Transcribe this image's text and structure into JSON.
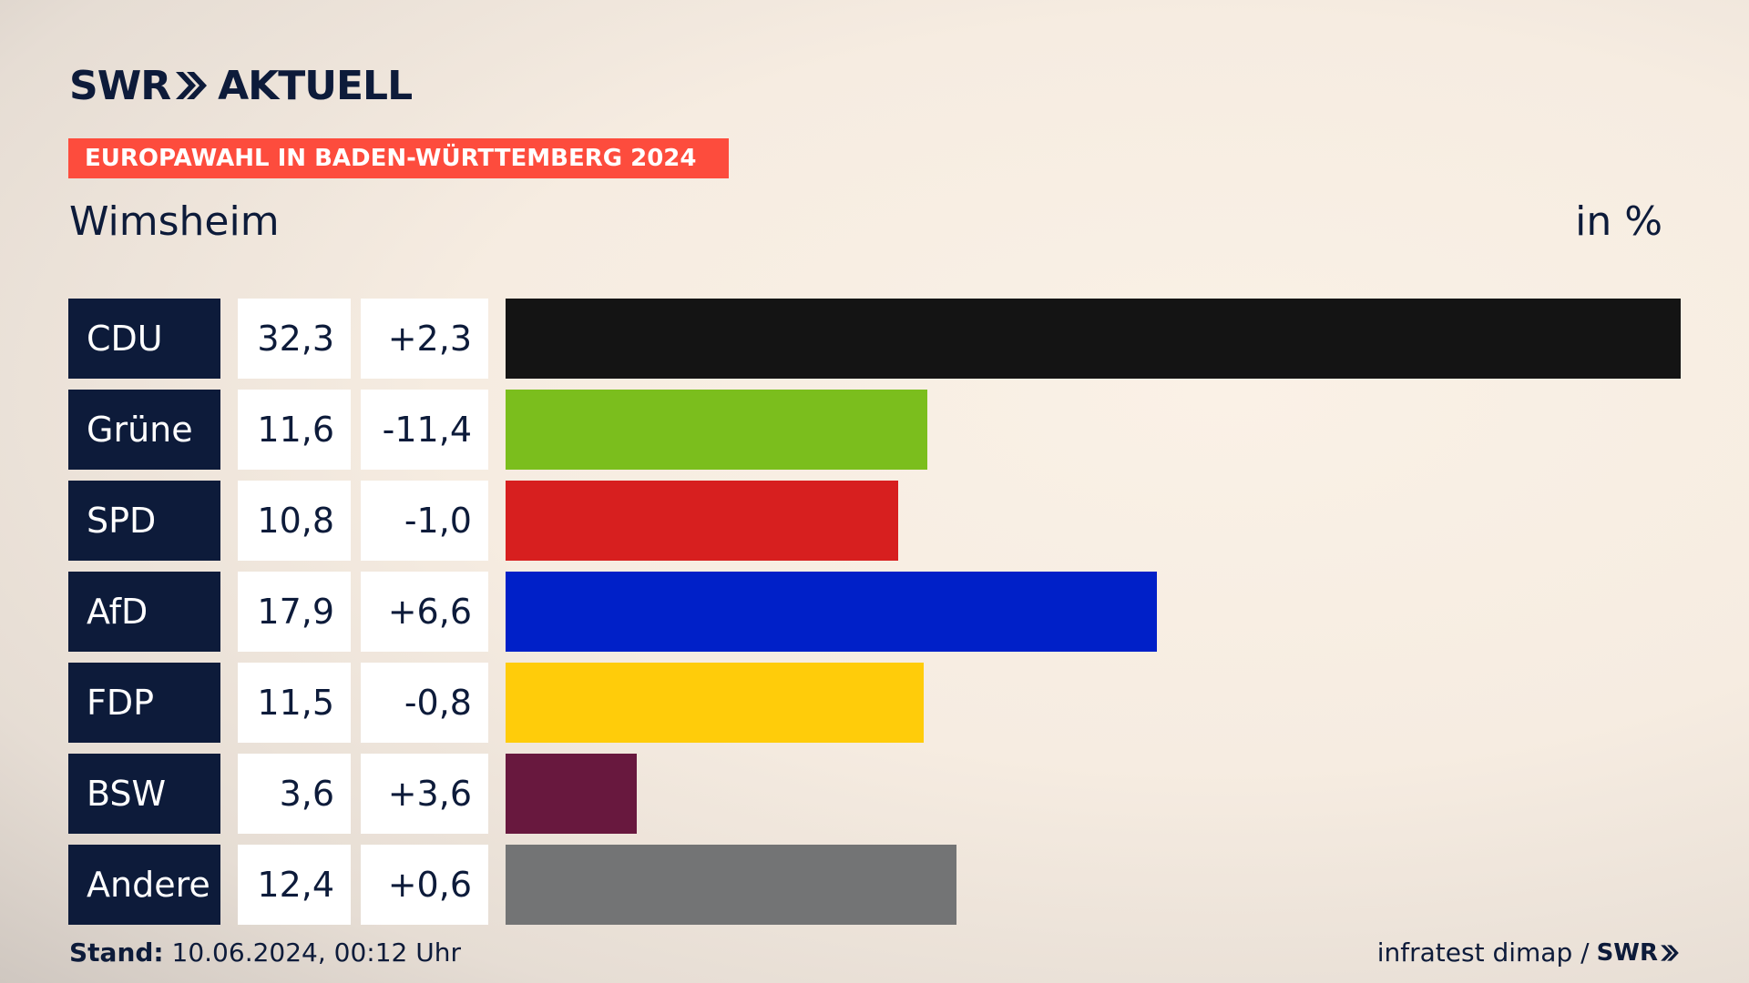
{
  "header": {
    "brand": "SWR",
    "product": "AKTUELL",
    "banner": "EUROPAWAHL IN BADEN-WÜRTTEMBERG 2024",
    "place": "Wimsheim",
    "unit": "in %"
  },
  "chart_data": {
    "type": "bar",
    "orientation": "horizontal",
    "categories": [
      "CDU",
      "Grüne",
      "SPD",
      "AfD",
      "FDP",
      "BSW",
      "Andere"
    ],
    "values": [
      32.3,
      11.6,
      10.8,
      17.9,
      11.5,
      3.6,
      12.4
    ],
    "value_labels": [
      "32,3",
      "11,6",
      "10,8",
      "17,9",
      "11,5",
      "3,6",
      "12,4"
    ],
    "change_labels": [
      "+2,3",
      "-11,4",
      "-1,0",
      "+6,6",
      "-0,8",
      "+3,6",
      "+0,6"
    ],
    "colors": [
      "#141414",
      "#7bbe1d",
      "#d71f1f",
      "#0020c8",
      "#ffcc0a",
      "#68183e",
      "#737475"
    ],
    "xlim": [
      0,
      32.3
    ],
    "grid": false
  },
  "footer": {
    "stand_label": "Stand:",
    "stand_value": "10.06.2024, 00:12 Uhr",
    "source": "infratest dimap /",
    "source_brand": "SWR"
  }
}
